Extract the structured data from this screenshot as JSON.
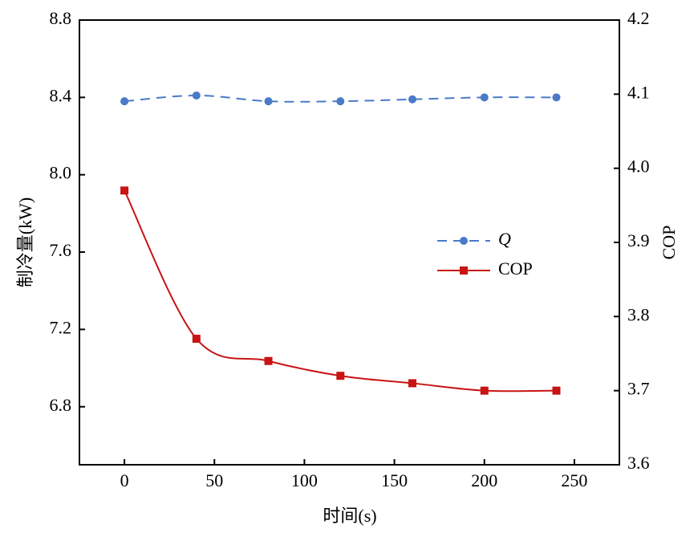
{
  "chart_data": {
    "type": "line",
    "x_label": "时间(s)",
    "y_label": "制冷量(kW)",
    "y2_label": "COP",
    "x": [
      0,
      40,
      80,
      120,
      160,
      200,
      240
    ],
    "xlim": [
      -25,
      275
    ],
    "xticks": [
      0,
      50,
      100,
      150,
      200,
      250
    ],
    "ylim": [
      6.5,
      8.8
    ],
    "yticks": [
      {
        "value": 6.8,
        "label": "6.8"
      },
      {
        "value": 7.2,
        "label": "7.2"
      },
      {
        "value": 7.6,
        "label": "7.6"
      },
      {
        "value": 8.0,
        "label": "8.0"
      },
      {
        "value": 8.4,
        "label": "8.4"
      },
      {
        "value": 8.8,
        "label": "8.8"
      }
    ],
    "y2lim": [
      3.6,
      4.2
    ],
    "y2ticks": [
      3.6,
      3.7,
      3.8,
      3.9,
      {
        "value": 4.0,
        "label": "4.0"
      },
      4.1,
      4.2
    ],
    "legend": "right",
    "series": [
      {
        "name": "Q",
        "color": "#4a7ac8",
        "dashed": true,
        "marker": "circle",
        "values": [
          8.38,
          8.41,
          8.38,
          8.38,
          8.39,
          8.4,
          8.4
        ]
      },
      {
        "name": "COP",
        "color": "#c81414",
        "dashed": false,
        "marker": "square",
        "axis": "y2",
        "values": [
          3.97,
          3.77,
          3.74,
          3.72,
          3.71,
          3.7,
          3.7
        ]
      }
    ]
  }
}
